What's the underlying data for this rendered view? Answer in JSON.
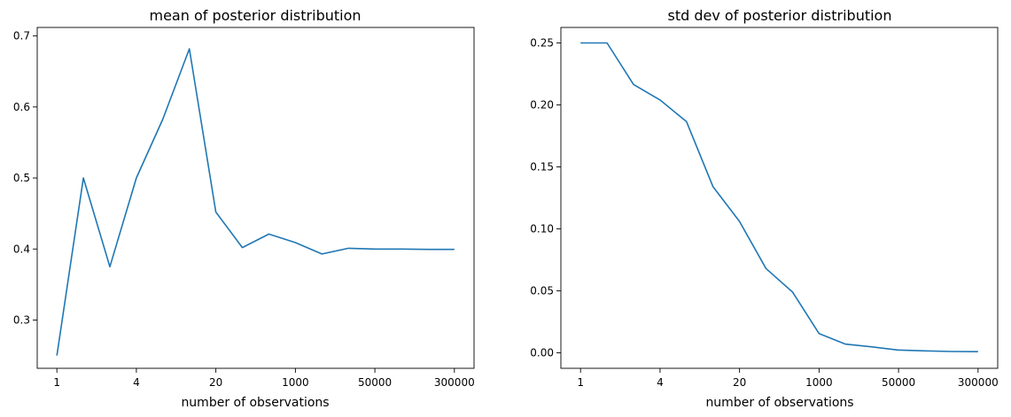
{
  "chart_data": [
    {
      "type": "line",
      "title": "mean of posterior distribution",
      "xlabel": "number of observations",
      "ylabel": "",
      "x_tick_labels": [
        "1",
        "4",
        "20",
        "1000",
        "50000",
        "300000"
      ],
      "x_tick_index": [
        0,
        3,
        6,
        9,
        12,
        15
      ],
      "y_ticks": [
        0.3,
        0.4,
        0.5,
        0.6,
        0.7
      ],
      "y_tick_labels": [
        "0.3",
        "0.4",
        "0.5",
        "0.6",
        "0.7"
      ],
      "ylim": [
        0.232,
        0.712
      ],
      "color": "#1f77b4",
      "values": [
        0.25,
        0.5,
        0.375,
        0.5,
        0.583,
        0.682,
        0.452,
        0.402,
        0.421,
        0.409,
        0.393,
        0.401,
        0.4,
        0.4,
        0.3995,
        0.3995
      ]
    },
    {
      "type": "line",
      "title": "std dev of posterior distribution",
      "xlabel": "number of observations",
      "ylabel": "",
      "x_tick_labels": [
        "1",
        "4",
        "20",
        "1000",
        "50000",
        "300000"
      ],
      "x_tick_index": [
        0,
        3,
        6,
        9,
        12,
        15
      ],
      "y_ticks": [
        0.0,
        0.05,
        0.1,
        0.15,
        0.2,
        0.25
      ],
      "y_tick_labels": [
        "0.00",
        "0.05",
        "0.10",
        "0.15",
        "0.20",
        "0.25"
      ],
      "ylim": [
        -0.0125,
        0.2625
      ],
      "color": "#1f77b4",
      "values": [
        0.25,
        0.25,
        0.2165,
        0.204,
        0.1865,
        0.134,
        0.106,
        0.068,
        0.049,
        0.0155,
        0.007,
        0.0048,
        0.0022,
        0.0016,
        0.0011,
        0.0009
      ]
    }
  ]
}
